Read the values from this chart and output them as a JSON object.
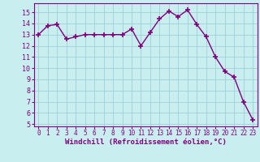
{
  "x": [
    0,
    1,
    2,
    3,
    4,
    5,
    6,
    7,
    8,
    9,
    10,
    11,
    12,
    13,
    14,
    15,
    16,
    17,
    18,
    19,
    20,
    21,
    22,
    23
  ],
  "y": [
    13,
    13.8,
    13.9,
    12.6,
    12.8,
    13,
    13,
    13,
    13,
    13,
    13.5,
    12,
    13.2,
    14.4,
    15.1,
    14.6,
    15.2,
    13.9,
    12.8,
    11,
    9.7,
    9.2,
    7,
    5.4
  ],
  "line_color": "#800080",
  "marker": "+",
  "marker_color": "#800080",
  "bg_color": "#c8eef0",
  "grid_color": "#a0d0d8",
  "xlabel": "Windchill (Refroidissement éolien,°C)",
  "xlabel_color": "#800080",
  "tick_color": "#800080",
  "ylim": [
    4.8,
    15.8
  ],
  "xlim": [
    -0.5,
    23.5
  ],
  "yticks": [
    5,
    6,
    7,
    8,
    9,
    10,
    11,
    12,
    13,
    14,
    15
  ],
  "xticks": [
    0,
    1,
    2,
    3,
    4,
    5,
    6,
    7,
    8,
    9,
    10,
    11,
    12,
    13,
    14,
    15,
    16,
    17,
    18,
    19,
    20,
    21,
    22,
    23
  ],
  "marker_size": 5,
  "linewidth": 1.0
}
